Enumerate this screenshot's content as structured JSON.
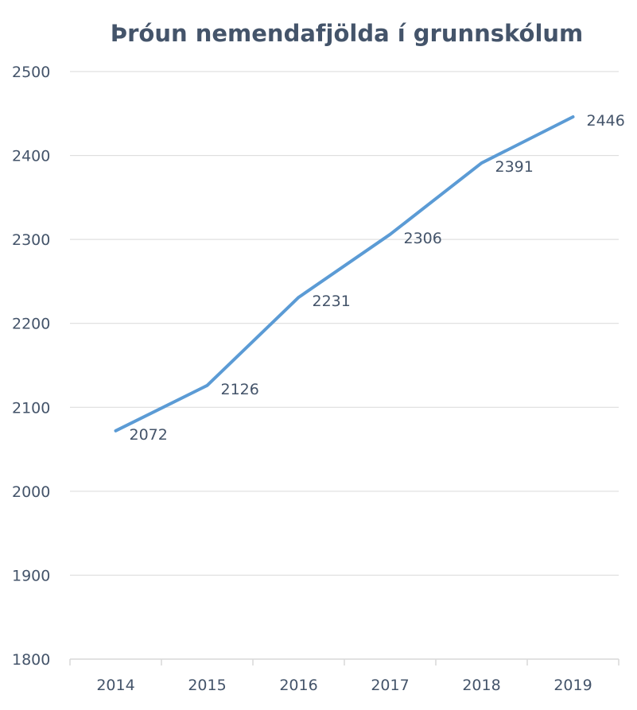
{
  "chart_data": {
    "type": "line",
    "title": "Þróun nemendafjölda í grunnskólum",
    "xlabel": "",
    "ylabel": "",
    "categories": [
      "2014",
      "2015",
      "2016",
      "2017",
      "2018",
      "2019"
    ],
    "series": [
      {
        "values": [
          2072,
          2126,
          2231,
          2306,
          2391,
          2446
        ],
        "color": "#5b9bd5"
      }
    ],
    "data_labels": [
      "2072",
      "2126",
      "2231",
      "2306",
      "2391",
      "2446"
    ],
    "ylim": [
      1800,
      2500
    ],
    "yticks": [
      "1800",
      "1900",
      "2000",
      "2100",
      "2200",
      "2300",
      "2400",
      "2500"
    ],
    "grid": true,
    "legend": "none",
    "colors": {
      "text": "#44546a",
      "grid": "#d9d9d9",
      "line": "#5b9bd5"
    }
  }
}
